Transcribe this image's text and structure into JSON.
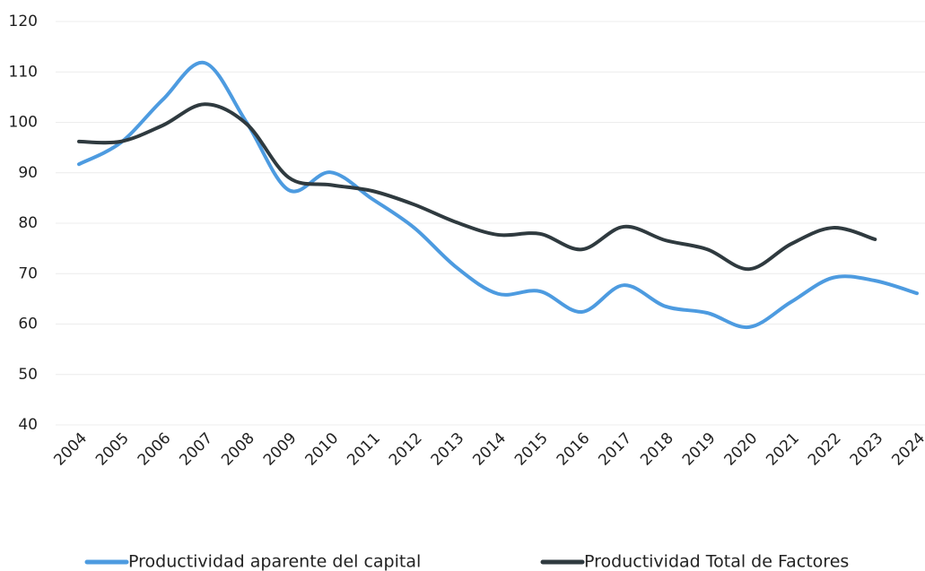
{
  "chart_data": {
    "type": "line",
    "categories": [
      "2004",
      "2005",
      "2006",
      "2007",
      "2008",
      "2009",
      "2010",
      "2011",
      "2012",
      "2013",
      "2014",
      "2015",
      "2016",
      "2017",
      "2018",
      "2019",
      "2020",
      "2021",
      "2022",
      "2023",
      "2024"
    ],
    "series": [
      {
        "name": "Productividad aparente del capital",
        "color": "#4d9be0",
        "values": [
          91.7,
          96,
          104.5,
          111.8,
          100,
          86.6,
          90.1,
          84.8,
          79.1,
          71.3,
          66,
          66.5,
          62.4,
          67.7,
          63.5,
          62.2,
          59.4,
          64.4,
          69.2,
          68.6,
          66.1
        ]
      },
      {
        "name": "Productividad Total de Factores",
        "color": "#2f3a3f",
        "values": [
          96.2,
          96.2,
          99.4,
          103.6,
          99.7,
          89.1,
          87.6,
          86.4,
          83.7,
          80.2,
          77.7,
          77.9,
          74.8,
          79.3,
          76.6,
          74.8,
          70.9,
          75.9,
          79.1,
          76.8,
          null
        ]
      }
    ],
    "ylim": [
      40,
      120
    ],
    "yticks": [
      40,
      50,
      60,
      70,
      80,
      90,
      100,
      110,
      120
    ],
    "grid": true,
    "legend": "bottom"
  }
}
